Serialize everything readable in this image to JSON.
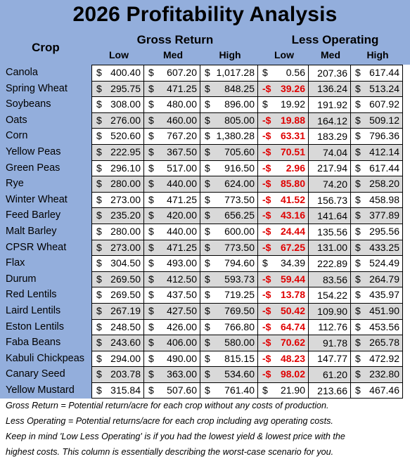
{
  "title": "2026 Profitability Analysis",
  "headers": {
    "crop": "Crop",
    "gross_return": "Gross Return",
    "less_operating": "Less Operating",
    "low": "Low",
    "med": "Med",
    "high": "High"
  },
  "rows": [
    {
      "crop": "Canola",
      "g_low": "400.40",
      "g_med": "607.20",
      "g_high": "1,017.28",
      "l_low": "0.56",
      "l_low_neg": false,
      "l_med": "207.36",
      "l_high": "617.44"
    },
    {
      "crop": "Spring Wheat",
      "g_low": "295.75",
      "g_med": "471.25",
      "g_high": "848.25",
      "l_low": "39.26",
      "l_low_neg": true,
      "l_med": "136.24",
      "l_high": "513.24"
    },
    {
      "crop": "Soybeans",
      "g_low": "308.00",
      "g_med": "480.00",
      "g_high": "896.00",
      "l_low": "19.92",
      "l_low_neg": false,
      "l_med": "191.92",
      "l_high": "607.92"
    },
    {
      "crop": "Oats",
      "g_low": "276.00",
      "g_med": "460.00",
      "g_high": "805.00",
      "l_low": "19.88",
      "l_low_neg": true,
      "l_med": "164.12",
      "l_high": "509.12"
    },
    {
      "crop": "Corn",
      "g_low": "520.60",
      "g_med": "767.20",
      "g_high": "1,380.28",
      "l_low": "63.31",
      "l_low_neg": true,
      "l_med": "183.29",
      "l_high": "796.36"
    },
    {
      "crop": "Yellow Peas",
      "g_low": "222.95",
      "g_med": "367.50",
      "g_high": "705.60",
      "l_low": "70.51",
      "l_low_neg": true,
      "l_med": "74.04",
      "l_high": "412.14"
    },
    {
      "crop": "Green Peas",
      "g_low": "296.10",
      "g_med": "517.00",
      "g_high": "916.50",
      "l_low": "2.96",
      "l_low_neg": true,
      "l_med": "217.94",
      "l_high": "617.44"
    },
    {
      "crop": "Rye",
      "g_low": "280.00",
      "g_med": "440.00",
      "g_high": "624.00",
      "l_low": "85.80",
      "l_low_neg": true,
      "l_med": "74.20",
      "l_high": "258.20"
    },
    {
      "crop": "Winter Wheat",
      "g_low": "273.00",
      "g_med": "471.25",
      "g_high": "773.50",
      "l_low": "41.52",
      "l_low_neg": true,
      "l_med": "156.73",
      "l_high": "458.98"
    },
    {
      "crop": "Feed Barley",
      "g_low": "235.20",
      "g_med": "420.00",
      "g_high": "656.25",
      "l_low": "43.16",
      "l_low_neg": true,
      "l_med": "141.64",
      "l_high": "377.89"
    },
    {
      "crop": "Malt Barley",
      "g_low": "280.00",
      "g_med": "440.00",
      "g_high": "600.00",
      "l_low": "24.44",
      "l_low_neg": true,
      "l_med": "135.56",
      "l_high": "295.56"
    },
    {
      "crop": "CPSR Wheat",
      "g_low": "273.00",
      "g_med": "471.25",
      "g_high": "773.50",
      "l_low": "67.25",
      "l_low_neg": true,
      "l_med": "131.00",
      "l_high": "433.25"
    },
    {
      "crop": "Flax",
      "g_low": "304.50",
      "g_med": "493.00",
      "g_high": "794.60",
      "l_low": "34.39",
      "l_low_neg": false,
      "l_med": "222.89",
      "l_high": "524.49"
    },
    {
      "crop": "Durum",
      "g_low": "269.50",
      "g_med": "412.50",
      "g_high": "593.73",
      "l_low": "59.44",
      "l_low_neg": true,
      "l_med": "83.56",
      "l_high": "264.79"
    },
    {
      "crop": "Red Lentils",
      "g_low": "269.50",
      "g_med": "437.50",
      "g_high": "719.25",
      "l_low": "13.78",
      "l_low_neg": true,
      "l_med": "154.22",
      "l_high": "435.97"
    },
    {
      "crop": "Laird Lentils",
      "g_low": "267.19",
      "g_med": "427.50",
      "g_high": "769.50",
      "l_low": "50.42",
      "l_low_neg": true,
      "l_med": "109.90",
      "l_high": "451.90"
    },
    {
      "crop": "Eston Lentils",
      "g_low": "248.50",
      "g_med": "426.00",
      "g_high": "766.80",
      "l_low": "64.74",
      "l_low_neg": true,
      "l_med": "112.76",
      "l_high": "453.56"
    },
    {
      "crop": "Faba Beans",
      "g_low": "243.60",
      "g_med": "406.00",
      "g_high": "580.00",
      "l_low": "70.62",
      "l_low_neg": true,
      "l_med": "91.78",
      "l_high": "265.78"
    },
    {
      "crop": "Kabuli Chickpeas",
      "g_low": "294.00",
      "g_med": "490.00",
      "g_high": "815.15",
      "l_low": "48.23",
      "l_low_neg": true,
      "l_med": "147.77",
      "l_high": "472.92"
    },
    {
      "crop": "Canary Seed",
      "g_low": "203.78",
      "g_med": "363.00",
      "g_high": "534.60",
      "l_low": "98.02",
      "l_low_neg": true,
      "l_med": "61.20",
      "l_high": "232.80"
    },
    {
      "crop": "Yellow Mustard",
      "g_low": "315.84",
      "g_med": "507.60",
      "g_high": "761.40",
      "l_low": "21.90",
      "l_low_neg": false,
      "l_med": "213.66",
      "l_high": "467.46"
    }
  ],
  "notes": [
    "Gross Return = Potential return/acre for each crop without any costs of production.",
    "Less Operating = Potential returns/acre for each crop including avg operating costs.",
    "Keep in mind 'Low Less Operating' is if you had the lowest yield & lowest price with the",
    "highest costs. This column is essentially describing the worst-case scenario for you."
  ],
  "colors": {
    "header_bg": "#93aedc",
    "alt_row": "#d9d9d9",
    "negative": "#e00000"
  }
}
